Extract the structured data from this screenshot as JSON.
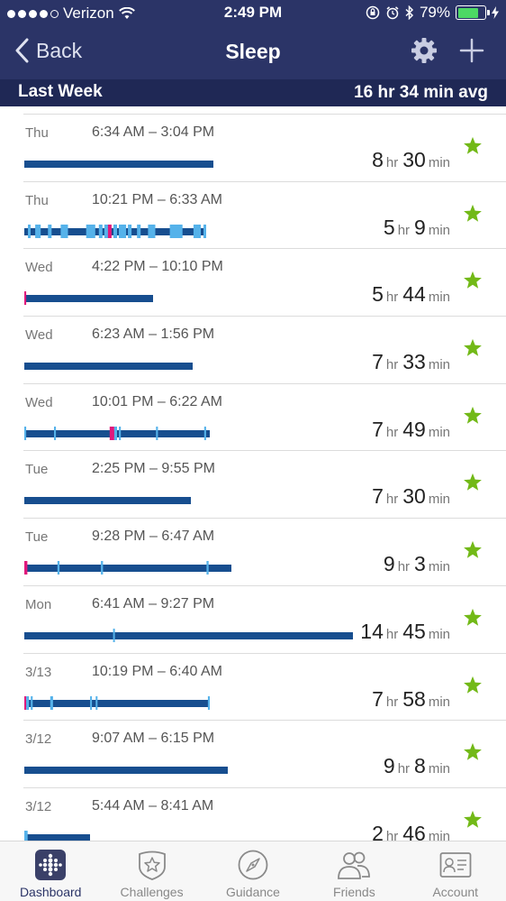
{
  "status_bar": {
    "carrier": "Verizon",
    "time": "2:49 PM",
    "battery": "79%",
    "battery_level": 0.79
  },
  "nav": {
    "back_label": "Back",
    "title": "Sleep"
  },
  "week": {
    "label": "Last Week",
    "average": "16 hr 34 min avg"
  },
  "colors": {
    "header": "#2b3467",
    "header_dark": "#1f2855",
    "sleep": "#174e8f",
    "restless": "#55b2ea",
    "awake": "#e0187c",
    "star": "#72b917"
  },
  "units": {
    "hr": "hr",
    "min": "min"
  },
  "sleep_logs": [
    {
      "day": "Thu",
      "range": "6:34 AM – 3:04 PM",
      "hours": "8",
      "minutes": "30",
      "bar_fraction": 0.575,
      "segments": []
    },
    {
      "day": "Thu",
      "range": "10:21 PM – 6:33 AM",
      "hours": "5",
      "minutes": "9",
      "bar_fraction": 0.554,
      "segments": [
        [
          0.02,
          0.035,
          "r"
        ],
        [
          0.06,
          0.09,
          "r"
        ],
        [
          0.13,
          0.15,
          "r"
        ],
        [
          0.2,
          0.24,
          "r"
        ],
        [
          0.34,
          0.39,
          "r"
        ],
        [
          0.41,
          0.43,
          "r"
        ],
        [
          0.44,
          0.47,
          "r"
        ],
        [
          0.49,
          0.51,
          "r"
        ],
        [
          0.52,
          0.56,
          "r"
        ],
        [
          0.57,
          0.59,
          "r"
        ],
        [
          0.62,
          0.64,
          "r"
        ],
        [
          0.68,
          0.72,
          "r"
        ],
        [
          0.8,
          0.87,
          "r"
        ],
        [
          0.93,
          0.97,
          "r"
        ],
        [
          0.985,
          1.0,
          "r"
        ],
        [
          0.46,
          0.48,
          "a"
        ]
      ]
    },
    {
      "day": "Wed",
      "range": "4:22 PM – 10:10 PM",
      "hours": "5",
      "minutes": "44",
      "bar_fraction": 0.392,
      "segments": [
        [
          0.0,
          0.015,
          "a"
        ]
      ]
    },
    {
      "day": "Wed",
      "range": "6:23 AM – 1:56 PM",
      "hours": "7",
      "minutes": "33",
      "bar_fraction": 0.512,
      "segments": []
    },
    {
      "day": "Wed",
      "range": "10:01 PM – 6:22 AM",
      "hours": "7",
      "minutes": "49",
      "bar_fraction": 0.564,
      "segments": [
        [
          0.0,
          0.01,
          "r"
        ],
        [
          0.16,
          0.17,
          "r"
        ],
        [
          0.46,
          0.485,
          "a"
        ],
        [
          0.485,
          0.5,
          "r"
        ],
        [
          0.51,
          0.52,
          "r"
        ],
        [
          0.71,
          0.72,
          "r"
        ],
        [
          0.97,
          0.98,
          "r"
        ]
      ]
    },
    {
      "day": "Tue",
      "range": "2:25 PM – 9:55 PM",
      "hours": "7",
      "minutes": "30",
      "bar_fraction": 0.508,
      "segments": []
    },
    {
      "day": "Tue",
      "range": "9:28 PM – 6:47 AM",
      "hours": "9",
      "minutes": "3",
      "bar_fraction": 0.63,
      "segments": [
        [
          0.0,
          0.015,
          "a"
        ],
        [
          0.16,
          0.17,
          "r"
        ],
        [
          0.37,
          0.38,
          "r"
        ],
        [
          0.88,
          0.89,
          "r"
        ]
      ]
    },
    {
      "day": "Mon",
      "range": "6:41 AM – 9:27 PM",
      "hours": "14",
      "minutes": "45",
      "bar_fraction": 1.0,
      "segments": [
        [
          0.27,
          0.275,
          "r"
        ]
      ]
    },
    {
      "day": "3/13",
      "range": "10:19 PM – 6:40 AM",
      "hours": "7",
      "minutes": "58",
      "bar_fraction": 0.564,
      "segments": [
        [
          0.0,
          0.01,
          "a"
        ],
        [
          0.01,
          0.025,
          "r"
        ],
        [
          0.035,
          0.045,
          "r"
        ],
        [
          0.14,
          0.155,
          "r"
        ],
        [
          0.355,
          0.36,
          "r"
        ],
        [
          0.385,
          0.39,
          "r"
        ],
        [
          0.99,
          1.0,
          "r"
        ]
      ]
    },
    {
      "day": "3/12",
      "range": "9:07 AM – 6:15 PM",
      "hours": "9",
      "minutes": "8",
      "bar_fraction": 0.618,
      "segments": []
    },
    {
      "day": "3/12",
      "range": "5:44 AM – 8:41 AM",
      "hours": "2",
      "minutes": "46",
      "bar_fraction": 0.2,
      "segments": [
        [
          0.0,
          0.05,
          "r"
        ]
      ]
    }
  ],
  "tabs": [
    {
      "label": "Dashboard",
      "icon": "dashboard-dots-icon",
      "active": true
    },
    {
      "label": "Challenges",
      "icon": "star-badge-icon",
      "active": false
    },
    {
      "label": "Guidance",
      "icon": "compass-icon",
      "active": false
    },
    {
      "label": "Friends",
      "icon": "friends-icon",
      "active": false
    },
    {
      "label": "Account",
      "icon": "id-card-icon",
      "active": false
    }
  ]
}
